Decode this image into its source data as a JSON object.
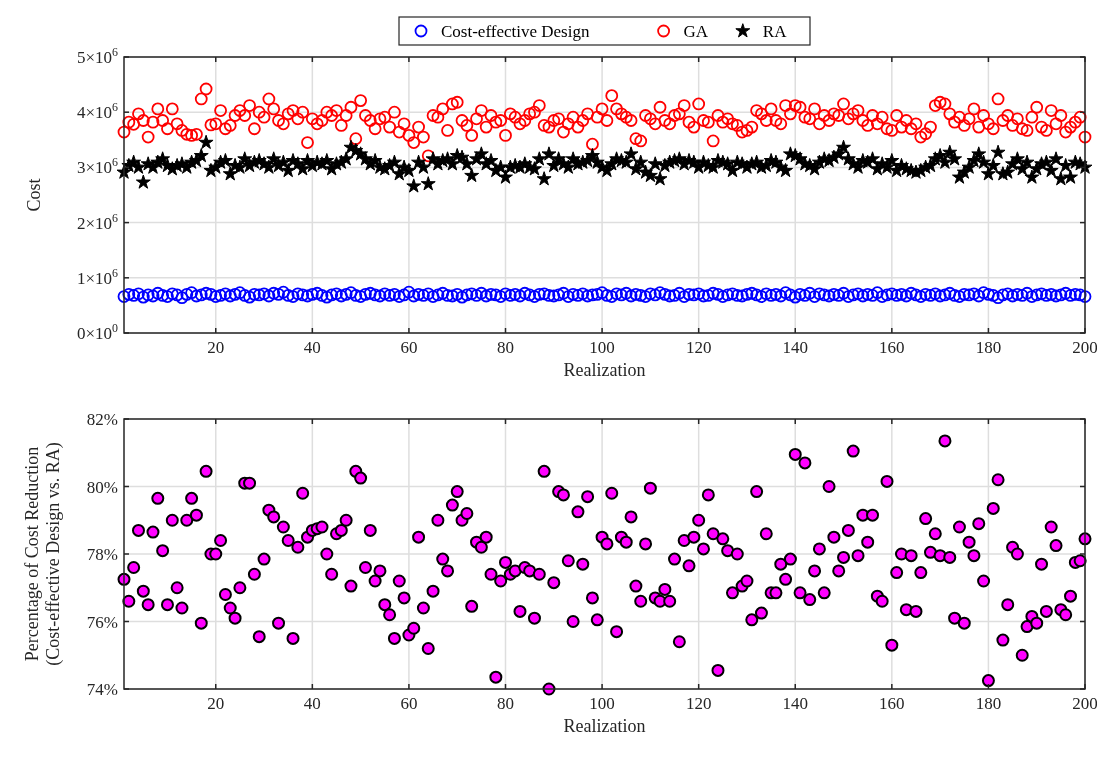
{
  "chart_data": [
    {
      "type": "scatter",
      "xlabel": "Realization",
      "ylabel": "Cost",
      "legend": "top",
      "x": [
        1,
        2,
        3,
        4,
        5,
        6,
        7,
        8,
        9,
        10,
        11,
        12,
        13,
        14,
        15,
        16,
        17,
        18,
        19,
        20,
        21,
        22,
        23,
        24,
        25,
        26,
        27,
        28,
        29,
        30,
        31,
        32,
        33,
        34,
        35,
        36,
        37,
        38,
        39,
        40,
        41,
        42,
        43,
        44,
        45,
        46,
        47,
        48,
        49,
        50,
        51,
        52,
        53,
        54,
        55,
        56,
        57,
        58,
        59,
        60,
        61,
        62,
        63,
        64,
        65,
        66,
        67,
        68,
        69,
        70,
        71,
        72,
        73,
        74,
        75,
        76,
        77,
        78,
        79,
        80,
        81,
        82,
        83,
        84,
        85,
        86,
        87,
        88,
        89,
        90,
        91,
        92,
        93,
        94,
        95,
        96,
        97,
        98,
        99,
        100,
        101,
        102,
        103,
        104,
        105,
        106,
        107,
        108,
        109,
        110,
        111,
        112,
        113,
        114,
        115,
        116,
        117,
        118,
        119,
        120,
        121,
        122,
        123,
        124,
        125,
        126,
        127,
        128,
        129,
        130,
        131,
        132,
        133,
        134,
        135,
        136,
        137,
        138,
        139,
        140,
        141,
        142,
        143,
        144,
        145,
        146,
        147,
        148,
        149,
        150,
        151,
        152,
        153,
        154,
        155,
        156,
        157,
        158,
        159,
        160,
        161,
        162,
        163,
        164,
        165,
        166,
        167,
        168,
        169,
        170,
        171,
        172,
        173,
        174,
        175,
        176,
        177,
        178,
        179,
        180,
        181,
        182,
        183,
        184,
        185,
        186,
        187,
        188,
        189,
        190,
        191,
        192,
        193,
        194,
        195,
        196,
        197,
        198,
        199,
        200
      ],
      "xlim": [
        1,
        200
      ],
      "xticks": [
        20,
        40,
        60,
        80,
        100,
        120,
        140,
        160,
        180,
        200
      ],
      "ylim": [
        0,
        5000000.0
      ],
      "yticks": [
        {
          "value": 0,
          "label": "0×10$^{0}$"
        },
        {
          "value": 1000000.0,
          "label": "1×10$^{6}$"
        },
        {
          "value": 2000000.0,
          "label": "2×10$^{6}$"
        },
        {
          "value": 3000000.0,
          "label": "3×10$^{6}$"
        },
        {
          "value": 4000000.0,
          "label": "4×10$^{6}$"
        },
        {
          "value": 5000000.0,
          "label": "5×10$^{6}$"
        }
      ],
      "grid": true,
      "series": [
        {
          "name": "Cost-effective Design",
          "color": "#0000ff",
          "marker": "circle",
          "values": [
            660000.0,
            700000.0,
            680000.0,
            710000.0,
            650000.0,
            690000.0,
            670000.0,
            720000.0,
            680000.0,
            660000.0,
            710000.0,
            690000.0,
            640000.0,
            700000.0,
            730000.0,
            670000.0,
            690000.0,
            720000.0,
            700000.0,
            660000.0,
            680000.0,
            710000.0,
            670000.0,
            700000.0,
            730000.0,
            680000.0,
            650000.0,
            700000.0,
            690000.0,
            710000.0,
            670000.0,
            720000.0,
            700000.0,
            740000.0,
            680000.0,
            660000.0,
            710000.0,
            690000.0,
            670000.0,
            700000.0,
            720000.0,
            680000.0,
            650000.0,
            690000.0,
            710000.0,
            670000.0,
            700000.0,
            730000.0,
            680000.0,
            660000.0,
            700000.0,
            720000.0,
            690000.0,
            670000.0,
            710000.0,
            680000.0,
            700000.0,
            660000.0,
            690000.0,
            740000.0,
            670000.0,
            700000.0,
            680000.0,
            710000.0,
            660000.0,
            690000.0,
            720000.0,
            680000.0,
            670000.0,
            700000.0,
            650000.0,
            690000.0,
            710000.0,
            680000.0,
            720000.0,
            670000.0,
            700000.0,
            690000.0,
            660000.0,
            710000.0,
            680000.0,
            700000.0,
            670000.0,
            720000.0,
            690000.0,
            660000.0,
            700000.0,
            710000.0,
            680000.0,
            670000.0,
            690000.0,
            720000.0,
            660000.0,
            700000.0,
            680000.0,
            710000.0,
            670000.0,
            690000.0,
            700000.0,
            730000.0,
            680000.0,
            660000.0,
            710000.0,
            690000.0,
            720000.0,
            670000.0,
            700000.0,
            680000.0,
            660000.0,
            710000.0,
            690000.0,
            730000.0,
            700000.0,
            670000.0,
            680000.0,
            720000.0,
            660000.0,
            700000.0,
            690000.0,
            710000.0,
            670000.0,
            680000.0,
            720000.0,
            700000.0,
            660000.0,
            690000.0,
            710000.0,
            680000.0,
            670000.0,
            700000.0,
            720000.0,
            690000.0,
            660000.0,
            710000.0,
            680000.0,
            700000.0,
            670000.0,
            730000.0,
            690000.0,
            650000.0,
            700000.0,
            680000.0,
            720000.0,
            660000.0,
            710000.0,
            690000.0,
            670000.0,
            700000.0,
            680000.0,
            720000.0,
            660000.0,
            690000.0,
            710000.0,
            670000.0,
            700000.0,
            680000.0,
            730000.0,
            660000.0,
            690000.0,
            710000.0,
            680000.0,
            700000.0,
            670000.0,
            720000.0,
            690000.0,
            660000.0,
            700000.0,
            680000.0,
            710000.0,
            670000.0,
            690000.0,
            720000.0,
            680000.0,
            660000.0,
            700000.0,
            690000.0,
            710000.0,
            670000.0,
            730000.0,
            700000.0,
            680000.0,
            640000.0,
            690000.0,
            710000.0,
            670000.0,
            700000.0,
            680000.0,
            720000.0,
            660000.0,
            690000.0,
            710000.0,
            680000.0,
            700000.0,
            670000.0,
            690000.0,
            720000.0,
            680000.0,
            700000.0,
            690000.0,
            660000.0
          ]
        },
        {
          "name": "GA",
          "color": "#ff0000",
          "marker": "circle",
          "values": [
            3640000.0,
            3820000.0,
            3780000.0,
            3970000.0,
            3850000.0,
            3550000.0,
            3820000.0,
            4060000.0,
            3850000.0,
            3700000.0,
            4060000.0,
            3790000.0,
            3670000.0,
            3600000.0,
            3580000.0,
            3600000.0,
            4240000.0,
            4420000.0,
            3770000.0,
            3790000.0,
            4030000.0,
            3700000.0,
            3760000.0,
            3940000.0,
            4030000.0,
            3940000.0,
            4120000.0,
            3700000.0,
            4000000.0,
            3910000.0,
            4240000.0,
            4060000.0,
            3850000.0,
            3790000.0,
            3970000.0,
            4030000.0,
            3880000.0,
            4000000.0,
            3450000.0,
            3880000.0,
            3790000.0,
            3850000.0,
            4000000.0,
            3940000.0,
            4030000.0,
            3760000.0,
            3940000.0,
            4090000.0,
            3520000.0,
            4210000.0,
            3940000.0,
            3850000.0,
            3700000.0,
            3880000.0,
            3910000.0,
            3730000.0,
            4000000.0,
            3640000.0,
            3790000.0,
            3580000.0,
            3450000.0,
            3730000.0,
            3550000.0,
            3210000.0,
            3940000.0,
            3910000.0,
            4060000.0,
            3670000.0,
            4150000.0,
            4180000.0,
            3850000.0,
            3760000.0,
            3580000.0,
            3880000.0,
            4030000.0,
            3730000.0,
            3940000.0,
            3820000.0,
            3850000.0,
            3580000.0,
            3970000.0,
            3910000.0,
            3790000.0,
            3850000.0,
            3970000.0,
            4000000.0,
            4120000.0,
            3760000.0,
            3730000.0,
            3850000.0,
            3880000.0,
            3640000.0,
            3790000.0,
            3910000.0,
            3730000.0,
            3850000.0,
            3970000.0,
            3420000.0,
            3910000.0,
            4060000.0,
            3850000.0,
            4300000.0,
            4060000.0,
            3970000.0,
            3910000.0,
            3850000.0,
            3520000.0,
            3480000.0,
            3940000.0,
            3880000.0,
            3790000.0,
            4090000.0,
            3850000.0,
            3790000.0,
            3940000.0,
            3970000.0,
            4120000.0,
            3820000.0,
            3730000.0,
            4150000.0,
            3850000.0,
            3820000.0,
            3480000.0,
            3940000.0,
            3820000.0,
            3880000.0,
            3790000.0,
            3760000.0,
            3640000.0,
            3670000.0,
            3730000.0,
            4030000.0,
            3970000.0,
            3850000.0,
            4060000.0,
            3850000.0,
            3790000.0,
            4120000.0,
            3970000.0,
            4120000.0,
            4090000.0,
            3910000.0,
            3880000.0,
            4060000.0,
            3790000.0,
            3940000.0,
            3850000.0,
            3970000.0,
            3940000.0,
            4150000.0,
            3880000.0,
            3970000.0,
            4030000.0,
            3850000.0,
            3760000.0,
            3940000.0,
            3790000.0,
            3910000.0,
            3700000.0,
            3670000.0,
            3940000.0,
            3730000.0,
            3850000.0,
            3700000.0,
            3790000.0,
            3550000.0,
            3610000.0,
            3730000.0,
            4120000.0,
            4180000.0,
            4150000.0,
            3970000.0,
            3820000.0,
            3910000.0,
            3760000.0,
            3880000.0,
            4060000.0,
            3730000.0,
            3940000.0,
            3790000.0,
            3700000.0,
            4240000.0,
            3850000.0,
            3940000.0,
            3760000.0,
            3880000.0,
            3700000.0,
            3670000.0,
            3910000.0,
            4090000.0,
            3730000.0,
            3670000.0,
            4030000.0,
            3790000.0,
            3940000.0,
            3640000.0,
            3730000.0,
            3820000.0,
            3910000.0,
            3550000.0
          ]
        },
        {
          "name": "RA",
          "color": "#000000",
          "marker": "star",
          "values": [
            2910000.0,
            3030000.0,
            3090000.0,
            3000000.0,
            2730000.0,
            3060000.0,
            3000000.0,
            3090000.0,
            3150000.0,
            3030000.0,
            2970000.0,
            3030000.0,
            3060000.0,
            3000000.0,
            3090000.0,
            3120000.0,
            3210000.0,
            3450000.0,
            2940000.0,
            3000000.0,
            3090000.0,
            3120000.0,
            2880000.0,
            3030000.0,
            3000000.0,
            3150000.0,
            3030000.0,
            3090000.0,
            3120000.0,
            3060000.0,
            3000000.0,
            3150000.0,
            3030000.0,
            3090000.0,
            2940000.0,
            3120000.0,
            3060000.0,
            2970000.0,
            3120000.0,
            3030000.0,
            3090000.0,
            3060000.0,
            3120000.0,
            2970000.0,
            3060000.0,
            3090000.0,
            3150000.0,
            3360000.0,
            3300000.0,
            3240000.0,
            3150000.0,
            3060000.0,
            3120000.0,
            3000000.0,
            2970000.0,
            3030000.0,
            3090000.0,
            2880000.0,
            3000000.0,
            2940000.0,
            2660000.0,
            3090000.0,
            3000000.0,
            2700000.0,
            3150000.0,
            3060000.0,
            3120000.0,
            3150000.0,
            3060000.0,
            3210000.0,
            3180000.0,
            3060000.0,
            2850000.0,
            3150000.0,
            3240000.0,
            3060000.0,
            3120000.0,
            2940000.0,
            3000000.0,
            2820000.0,
            3000000.0,
            3030000.0,
            3000000.0,
            3060000.0,
            3000000.0,
            2970000.0,
            3150000.0,
            2790000.0,
            3240000.0,
            3030000.0,
            3150000.0,
            3060000.0,
            3000000.0,
            3150000.0,
            3060000.0,
            3090000.0,
            3120000.0,
            3210000.0,
            3090000.0,
            3000000.0,
            2940000.0,
            3060000.0,
            3150000.0,
            3120000.0,
            3090000.0,
            3240000.0,
            2970000.0,
            3090000.0,
            2910000.0,
            2850000.0,
            3060000.0,
            2790000.0,
            3030000.0,
            3090000.0,
            3120000.0,
            3150000.0,
            3060000.0,
            3120000.0,
            3090000.0,
            3000000.0,
            3090000.0,
            3030000.0,
            3000000.0,
            3120000.0,
            3090000.0,
            3060000.0,
            2940000.0,
            3090000.0,
            3060000.0,
            3000000.0,
            3060000.0,
            3090000.0,
            3000000.0,
            3030000.0,
            3120000.0,
            3090000.0,
            3000000.0,
            2940000.0,
            3240000.0,
            3210000.0,
            3150000.0,
            3060000.0,
            3030000.0,
            2970000.0,
            3090000.0,
            3150000.0,
            3120000.0,
            3180000.0,
            3240000.0,
            3360000.0,
            3150000.0,
            3060000.0,
            3000000.0,
            3120000.0,
            3090000.0,
            3150000.0,
            2970000.0,
            3060000.0,
            3000000.0,
            3120000.0,
            2940000.0,
            3030000.0,
            2970000.0,
            2940000.0,
            2910000.0,
            2940000.0,
            3000000.0,
            3030000.0,
            3150000.0,
            3210000.0,
            3090000.0,
            3270000.0,
            3150000.0,
            2820000.0,
            2910000.0,
            3000000.0,
            3120000.0,
            3240000.0,
            3090000.0,
            2880000.0,
            3030000.0,
            3270000.0,
            2880000.0,
            2910000.0,
            3060000.0,
            3150000.0,
            2970000.0,
            3090000.0,
            2820000.0,
            2970000.0,
            3060000.0,
            3090000.0,
            2940000.0,
            3150000.0,
            2790000.0,
            3030000.0,
            2820000.0,
            3090000.0,
            3060000.0,
            3000000.0
          ]
        }
      ]
    },
    {
      "type": "scatter",
      "xlabel": "Realization",
      "ylabel": "Percentage of Cost Reduction\n(Cost-effective Design vs. RA)",
      "x": [
        1,
        2,
        3,
        4,
        5,
        6,
        7,
        8,
        9,
        10,
        11,
        12,
        13,
        14,
        15,
        16,
        17,
        18,
        19,
        20,
        21,
        22,
        23,
        24,
        25,
        26,
        27,
        28,
        29,
        30,
        31,
        32,
        33,
        34,
        35,
        36,
        37,
        38,
        39,
        40,
        41,
        42,
        43,
        44,
        45,
        46,
        47,
        48,
        49,
        50,
        51,
        52,
        53,
        54,
        55,
        56,
        57,
        58,
        59,
        60,
        61,
        62,
        63,
        64,
        65,
        66,
        67,
        68,
        69,
        70,
        71,
        72,
        73,
        74,
        75,
        76,
        77,
        78,
        79,
        80,
        81,
        82,
        83,
        84,
        85,
        86,
        87,
        88,
        89,
        90,
        91,
        92,
        93,
        94,
        95,
        96,
        97,
        98,
        99,
        100,
        101,
        102,
        103,
        104,
        105,
        106,
        107,
        108,
        109,
        110,
        111,
        112,
        113,
        114,
        115,
        116,
        117,
        118,
        119,
        120,
        121,
        122,
        123,
        124,
        125,
        126,
        127,
        128,
        129,
        130,
        131,
        132,
        133,
        134,
        135,
        136,
        137,
        138,
        139,
        140,
        141,
        142,
        143,
        144,
        145,
        146,
        147,
        148,
        149,
        150,
        151,
        152,
        153,
        154,
        155,
        156,
        157,
        158,
        159,
        160,
        161,
        162,
        163,
        164,
        165,
        166,
        167,
        168,
        169,
        170,
        171,
        172,
        173,
        174,
        175,
        176,
        177,
        178,
        179,
        180,
        181,
        182,
        183,
        184,
        185,
        186,
        187,
        188,
        189,
        190,
        191,
        192,
        193,
        194,
        195,
        196,
        197,
        198,
        199,
        200
      ],
      "xlim": [
        1,
        200
      ],
      "xticks": [
        20,
        40,
        60,
        80,
        100,
        120,
        140,
        160,
        180,
        200
      ],
      "ylim": [
        74,
        82
      ],
      "yticks": [
        {
          "value": 74,
          "label": "74%"
        },
        {
          "value": 76,
          "label": "76%"
        },
        {
          "value": 78,
          "label": "78%"
        },
        {
          "value": 80,
          "label": "80%"
        },
        {
          "value": 82,
          "label": "82%"
        }
      ],
      "grid": true,
      "marker": "circle",
      "series": [
        {
          "color": "#ff00ff",
          "values": [
            77.25,
            76.6,
            77.6,
            78.7,
            76.9,
            76.5,
            78.65,
            79.65,
            78.1,
            76.5,
            79.0,
            77.0,
            76.4,
            79.0,
            79.65,
            79.15,
            75.95,
            80.45,
            78.0,
            78.0,
            78.4,
            76.8,
            76.4,
            76.1,
            77.0,
            80.1,
            80.1,
            77.4,
            75.55,
            77.85,
            79.3,
            79.1,
            75.95,
            78.8,
            78.4,
            75.5,
            78.2,
            79.8,
            78.5,
            78.7,
            78.75,
            78.8,
            78.0,
            77.4,
            78.6,
            78.7,
            79.0,
            77.05,
            80.45,
            80.25,
            77.6,
            78.7,
            77.2,
            77.5,
            76.5,
            76.2,
            75.5,
            77.2,
            76.7,
            75.6,
            75.8,
            78.5,
            76.4,
            75.2,
            76.9,
            79.0,
            77.85,
            77.5,
            79.45,
            79.85,
            79.0,
            79.2,
            76.45,
            78.35,
            78.2,
            78.5,
            77.4,
            74.35,
            77.2,
            77.75,
            77.4,
            77.5,
            76.3,
            77.6,
            77.5,
            76.1,
            77.4,
            80.45,
            74.0,
            77.15,
            79.85,
            79.75,
            77.8,
            76.0,
            79.25,
            77.7,
            79.7,
            76.7,
            76.05,
            78.5,
            78.3,
            79.8,
            75.7,
            78.5,
            78.35,
            79.1,
            77.05,
            76.6,
            78.3,
            79.95,
            76.7,
            76.6,
            76.95,
            76.6,
            77.85,
            75.4,
            78.4,
            77.65,
            78.5,
            79.0,
            78.15,
            79.75,
            78.6,
            74.55,
            78.45,
            78.1,
            76.85,
            78.0,
            77.05,
            77.2,
            76.05,
            79.85,
            76.25,
            78.6,
            76.85,
            76.85,
            77.7,
            77.25,
            77.85,
            80.95,
            76.85,
            80.7,
            76.65,
            77.5,
            78.15,
            76.85,
            80.0,
            78.5,
            77.5,
            77.9,
            78.7,
            81.05,
            77.95,
            79.15,
            78.35,
            79.15,
            76.75,
            76.6,
            80.15,
            75.3,
            77.45,
            78.0,
            76.35,
            77.95,
            76.3,
            77.45,
            79.05,
            78.05,
            78.6,
            77.95,
            81.35,
            77.9,
            76.1,
            78.8,
            75.95,
            78.35,
            77.95,
            78.9,
            77.2,
            74.25,
            79.35,
            80.2,
            75.45,
            76.5,
            78.2,
            78.0,
            75.0,
            75.85,
            76.15,
            75.95,
            77.7,
            76.3,
            78.8,
            78.25,
            76.35,
            76.2,
            76.75,
            77.75,
            77.8,
            78.45
          ]
        }
      ]
    }
  ]
}
